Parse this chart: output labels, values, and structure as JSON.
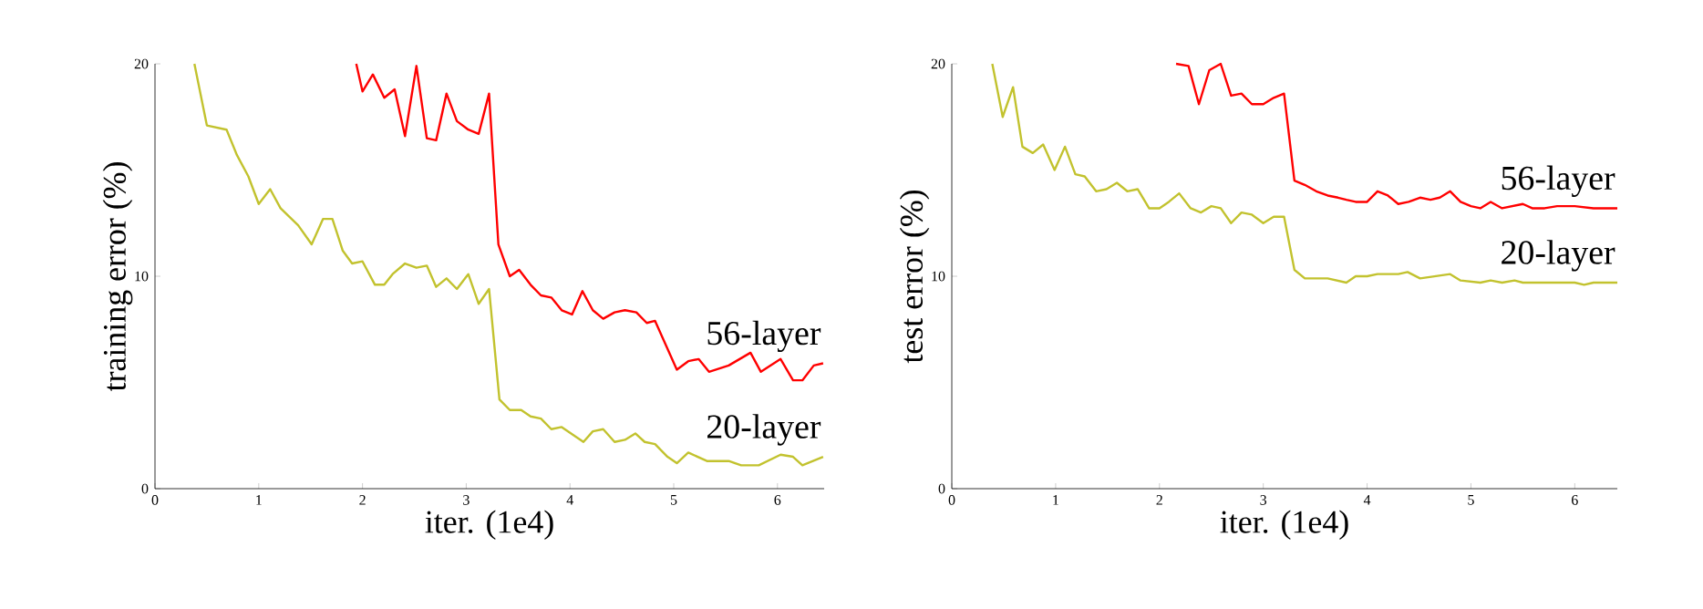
{
  "chart_data": [
    {
      "type": "line",
      "xlabel": "iter. (1e4)",
      "ylabel": "training error (%)",
      "xlim": [
        0,
        6.45
      ],
      "ylim": [
        0,
        20
      ],
      "xticks": [
        0,
        1,
        2,
        3,
        4,
        5,
        6
      ],
      "yticks": [
        0,
        10,
        20
      ],
      "series": [
        {
          "name": "56-layer",
          "color": "#ff0000",
          "x": [
            1.94,
            2.0,
            2.1,
            2.21,
            2.31,
            2.41,
            2.52,
            2.62,
            2.71,
            2.81,
            2.91,
            3.02,
            3.12,
            3.22,
            3.31,
            3.42,
            3.51,
            3.62,
            3.72,
            3.82,
            3.92,
            4.02,
            4.12,
            4.22,
            4.32,
            4.43,
            4.53,
            4.64,
            4.74,
            4.82,
            5.03,
            5.14,
            5.24,
            5.34,
            5.53,
            5.74,
            5.84,
            6.03,
            6.15,
            6.24,
            6.35,
            6.44
          ],
          "values": [
            20,
            18.7,
            19.5,
            18.4,
            18.8,
            16.6,
            19.9,
            16.5,
            16.4,
            18.6,
            17.3,
            16.9,
            16.7,
            18.6,
            11.5,
            10.0,
            10.3,
            9.6,
            9.1,
            9.0,
            8.4,
            8.2,
            9.3,
            8.4,
            8.0,
            8.3,
            8.4,
            8.3,
            7.8,
            7.9,
            5.6,
            6.0,
            6.1,
            5.5,
            5.8,
            6.4,
            5.5,
            6.1,
            5.1,
            5.1,
            5.8,
            5.9
          ]
        },
        {
          "name": "20-layer",
          "color": "#c2c22e",
          "x": [
            0.38,
            0.5,
            0.69,
            0.79,
            0.9,
            1.0,
            1.11,
            1.21,
            1.38,
            1.51,
            1.62,
            1.71,
            1.81,
            1.9,
            2.0,
            2.12,
            2.21,
            2.29,
            2.41,
            2.52,
            2.62,
            2.71,
            2.81,
            2.91,
            3.02,
            3.12,
            3.22,
            3.32,
            3.42,
            3.53,
            3.62,
            3.72,
            3.82,
            3.92,
            4.13,
            4.22,
            4.32,
            4.43,
            4.53,
            4.63,
            4.72,
            4.82,
            4.94,
            5.03,
            5.14,
            5.32,
            5.53,
            5.65,
            5.82,
            6.03,
            6.15,
            6.24,
            6.44
          ],
          "values": [
            20,
            17.1,
            16.9,
            15.7,
            14.7,
            13.4,
            14.1,
            13.2,
            12.4,
            11.5,
            12.7,
            12.7,
            11.2,
            10.6,
            10.7,
            9.6,
            9.6,
            10.1,
            10.6,
            10.4,
            10.5,
            9.5,
            9.9,
            9.4,
            10.1,
            8.7,
            9.4,
            4.2,
            3.7,
            3.7,
            3.4,
            3.3,
            2.8,
            2.9,
            2.2,
            2.7,
            2.8,
            2.2,
            2.3,
            2.6,
            2.2,
            2.1,
            1.5,
            1.2,
            1.7,
            1.3,
            1.3,
            1.1,
            1.1,
            1.6,
            1.5,
            1.1,
            1.5
          ]
        }
      ]
    },
    {
      "type": "line",
      "xlabel": "iter. (1e4)",
      "ylabel": "test error (%)",
      "xlim": [
        0,
        6.41
      ],
      "ylim": [
        0,
        20
      ],
      "xticks": [
        0,
        1,
        2,
        3,
        4,
        5,
        6
      ],
      "yticks": [
        0,
        10,
        20
      ],
      "series": [
        {
          "name": "56-layer",
          "color": "#ff0000",
          "x": [
            2.16,
            2.28,
            2.38,
            2.48,
            2.59,
            2.69,
            2.79,
            2.89,
            3.0,
            3.1,
            3.2,
            3.3,
            3.4,
            3.51,
            3.62,
            3.72,
            3.8,
            3.89,
            4.0,
            4.1,
            4.2,
            4.3,
            4.4,
            4.51,
            4.61,
            4.7,
            4.8,
            4.9,
            5.0,
            5.09,
            5.19,
            5.3,
            5.5,
            5.59,
            5.71,
            5.83,
            6.0,
            6.18,
            6.41
          ],
          "values": [
            20,
            19.9,
            18.1,
            19.7,
            20,
            18.5,
            18.6,
            18.1,
            18.1,
            18.4,
            18.6,
            14.5,
            14.3,
            14.0,
            13.8,
            13.7,
            13.6,
            13.5,
            13.5,
            14.0,
            13.8,
            13.4,
            13.5,
            13.7,
            13.6,
            13.7,
            14.0,
            13.5,
            13.3,
            13.2,
            13.5,
            13.2,
            13.4,
            13.2,
            13.2,
            13.3,
            13.3,
            13.2,
            13.2
          ]
        },
        {
          "name": "20-layer",
          "color": "#c2c22e",
          "x": [
            0.39,
            0.49,
            0.59,
            0.68,
            0.78,
            0.88,
            0.99,
            1.09,
            1.19,
            1.28,
            1.39,
            1.49,
            1.59,
            1.69,
            1.79,
            1.9,
            2.0,
            2.09,
            2.19,
            2.3,
            2.4,
            2.5,
            2.59,
            2.69,
            2.79,
            2.89,
            3.0,
            3.1,
            3.2,
            3.3,
            3.4,
            3.51,
            3.62,
            3.8,
            3.89,
            4.0,
            4.1,
            4.3,
            4.39,
            4.51,
            4.8,
            4.9,
            5.09,
            5.19,
            5.3,
            5.42,
            5.5,
            6.0,
            6.09,
            6.18,
            6.41
          ],
          "values": [
            20,
            17.5,
            18.9,
            16.1,
            15.8,
            16.2,
            15.0,
            16.1,
            14.8,
            14.7,
            14.0,
            14.1,
            14.4,
            14.0,
            14.1,
            13.2,
            13.2,
            13.5,
            13.9,
            13.2,
            13.0,
            13.3,
            13.2,
            12.5,
            13.0,
            12.9,
            12.5,
            12.8,
            12.8,
            10.3,
            9.9,
            9.9,
            9.9,
            9.7,
            10.0,
            10.0,
            10.1,
            10.1,
            10.2,
            9.9,
            10.1,
            9.8,
            9.7,
            9.8,
            9.7,
            9.8,
            9.7,
            9.7,
            9.6,
            9.7,
            9.7
          ]
        }
      ]
    }
  ]
}
